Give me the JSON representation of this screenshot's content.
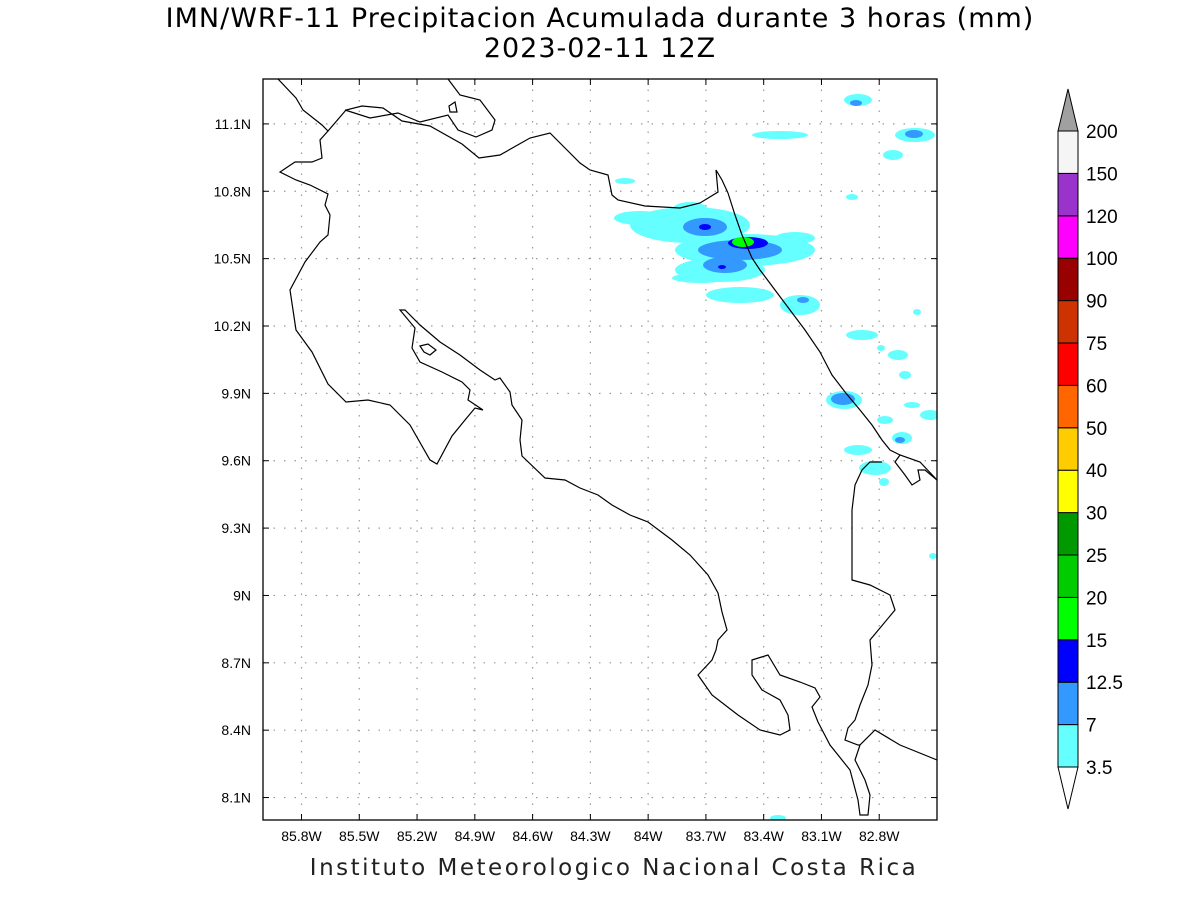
{
  "title": "IMN/WRF-11 Precipitacion Acumulada durante 3 horas (mm)",
  "subtitle": "2023-02-11 12Z",
  "footer": "Instituto Meteorologico Nacional Costa Rica",
  "map": {
    "lon_range": [
      -86.0,
      -82.5
    ],
    "lat_range": [
      8.0,
      11.3
    ],
    "lon_ticks": [
      "85.8W",
      "85.5W",
      "85.2W",
      "84.9W",
      "84.6W",
      "84.3W",
      "84W",
      "83.7W",
      "83.4W",
      "83.1W",
      "82.8W"
    ],
    "lon_values": [
      -85.8,
      -85.5,
      -85.2,
      -84.9,
      -84.6,
      -84.3,
      -84.0,
      -83.7,
      -83.4,
      -83.1,
      -82.8
    ],
    "lat_ticks": [
      "11.1N",
      "10.8N",
      "10.5N",
      "10.2N",
      "9.9N",
      "9.6N",
      "9.3N",
      "9N",
      "8.7N",
      "8.4N",
      "8.1N"
    ],
    "lat_values": [
      11.1,
      10.8,
      10.5,
      10.2,
      9.9,
      9.6,
      9.3,
      9.0,
      8.7,
      8.4,
      8.1
    ],
    "grid": "dotted"
  },
  "colorbar": {
    "labels": [
      "3.5",
      "7",
      "12.5",
      "15",
      "20",
      "25",
      "30",
      "40",
      "50",
      "60",
      "75",
      "90",
      "100",
      "120",
      "150",
      "200"
    ],
    "colors": [
      "#66ffff",
      "#3399ff",
      "#0000ff",
      "#00ff00",
      "#00cc00",
      "#009900",
      "#ffff00",
      "#ffcc00",
      "#ff6600",
      "#ff0000",
      "#cc3300",
      "#990000",
      "#ff00ff",
      "#9933cc",
      "#f5f5f5"
    ],
    "over_color": "#a0a0a0",
    "under_color": "#ffffff"
  }
}
